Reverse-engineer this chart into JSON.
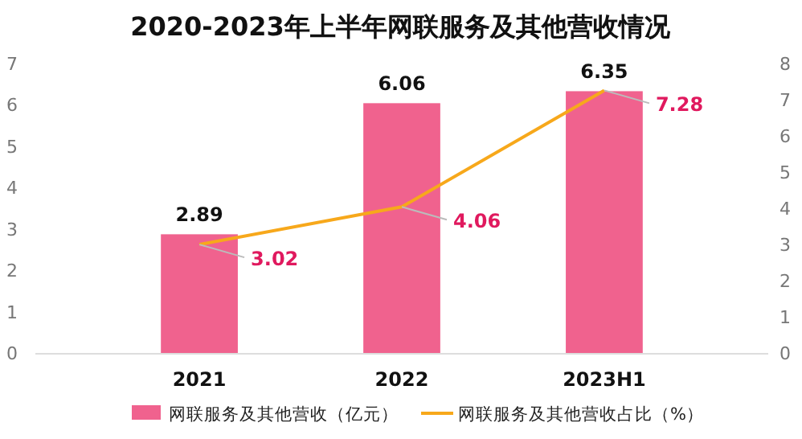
{
  "chart_data": {
    "type": "bar",
    "title": "2020-2023年上半年网联服务及其他营收情况",
    "categories": [
      "2021",
      "2022",
      "2023H1"
    ],
    "series": [
      {
        "name": "网联服务及其他营收（亿元）",
        "color": "#f0628e",
        "values": [
          2.89,
          6.06,
          6.35
        ]
      },
      {
        "name": "网联服务及其他营收占比（%）",
        "type": "line",
        "axis": "y2",
        "color": "#f7a81b",
        "values": [
          3.02,
          4.06,
          7.28
        ]
      }
    ],
    "ylim": [
      0,
      7
    ],
    "yticks": [
      0,
      1,
      2,
      3,
      4,
      5,
      6,
      7
    ],
    "y2lim": [
      0,
      8
    ],
    "y2ticks": [
      0,
      1,
      2,
      3,
      4,
      5,
      6,
      7,
      8
    ],
    "data_labels": true,
    "grid": false,
    "legend": "bottom",
    "marker": "none"
  }
}
